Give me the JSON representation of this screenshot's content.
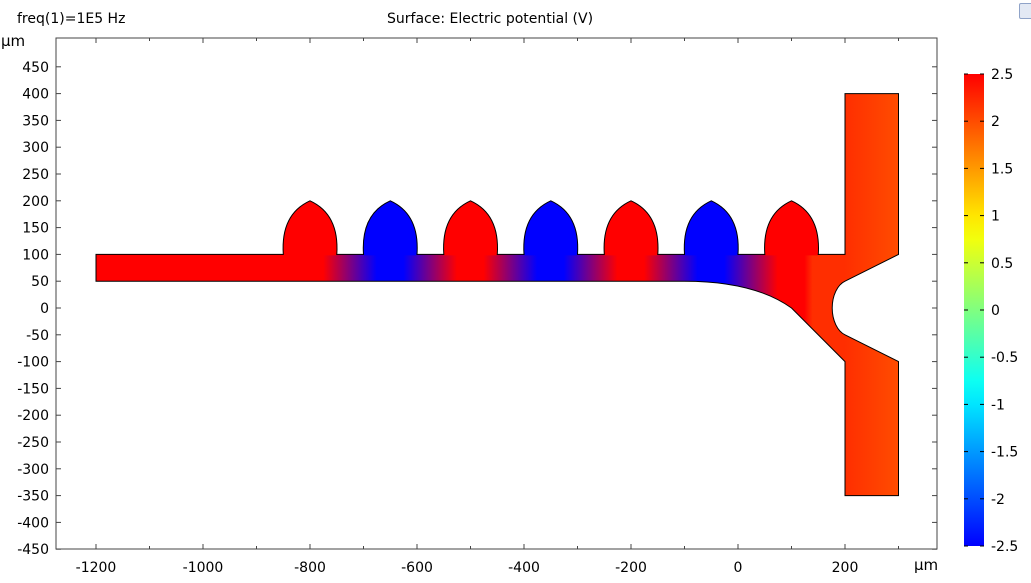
{
  "header": {
    "param_label": "freq(1)=1E5 Hz",
    "title": "Surface: Electric potential (V)"
  },
  "chart_data": {
    "type": "heatmap",
    "title": "Surface: Electric potential (V)",
    "parameter": "freq(1)=1E5 Hz",
    "xlabel": "μm",
    "ylabel": "μm",
    "xlim": [
      -1250,
      370
    ],
    "ylim": [
      -460,
      500
    ],
    "x_ticks": [
      -1200,
      -1000,
      -800,
      -600,
      -400,
      -200,
      0,
      200
    ],
    "y_ticks": [
      450,
      400,
      350,
      300,
      250,
      200,
      150,
      100,
      50,
      0,
      -50,
      -100,
      -150,
      -200,
      -250,
      -300,
      -350,
      -400,
      -450
    ],
    "grid": false,
    "colorbar": {
      "range": [
        -2.5,
        2.5
      ],
      "ticks": [
        2.5,
        2,
        1.5,
        1,
        0.5,
        0,
        -0.5,
        -1,
        -1.5,
        -2,
        -2.5
      ],
      "colors": [
        "#0000ff",
        "#00ffff",
        "#ffff00",
        "#ff0000"
      ]
    },
    "electrodes": [
      {
        "x_center": -800,
        "potential": 2.5
      },
      {
        "x_center": -650,
        "potential": -2.5
      },
      {
        "x_center": -500,
        "potential": 2.5
      },
      {
        "x_center": -350,
        "potential": -2.5
      },
      {
        "x_center": -200,
        "potential": 2.5
      },
      {
        "x_center": -50,
        "potential": -2.5
      },
      {
        "x_center": 100,
        "potential": 2.5
      }
    ],
    "inlet_potential": 2.5,
    "outlet_top_potential": 2.2,
    "outlet_bottom_potential": 2.0
  }
}
